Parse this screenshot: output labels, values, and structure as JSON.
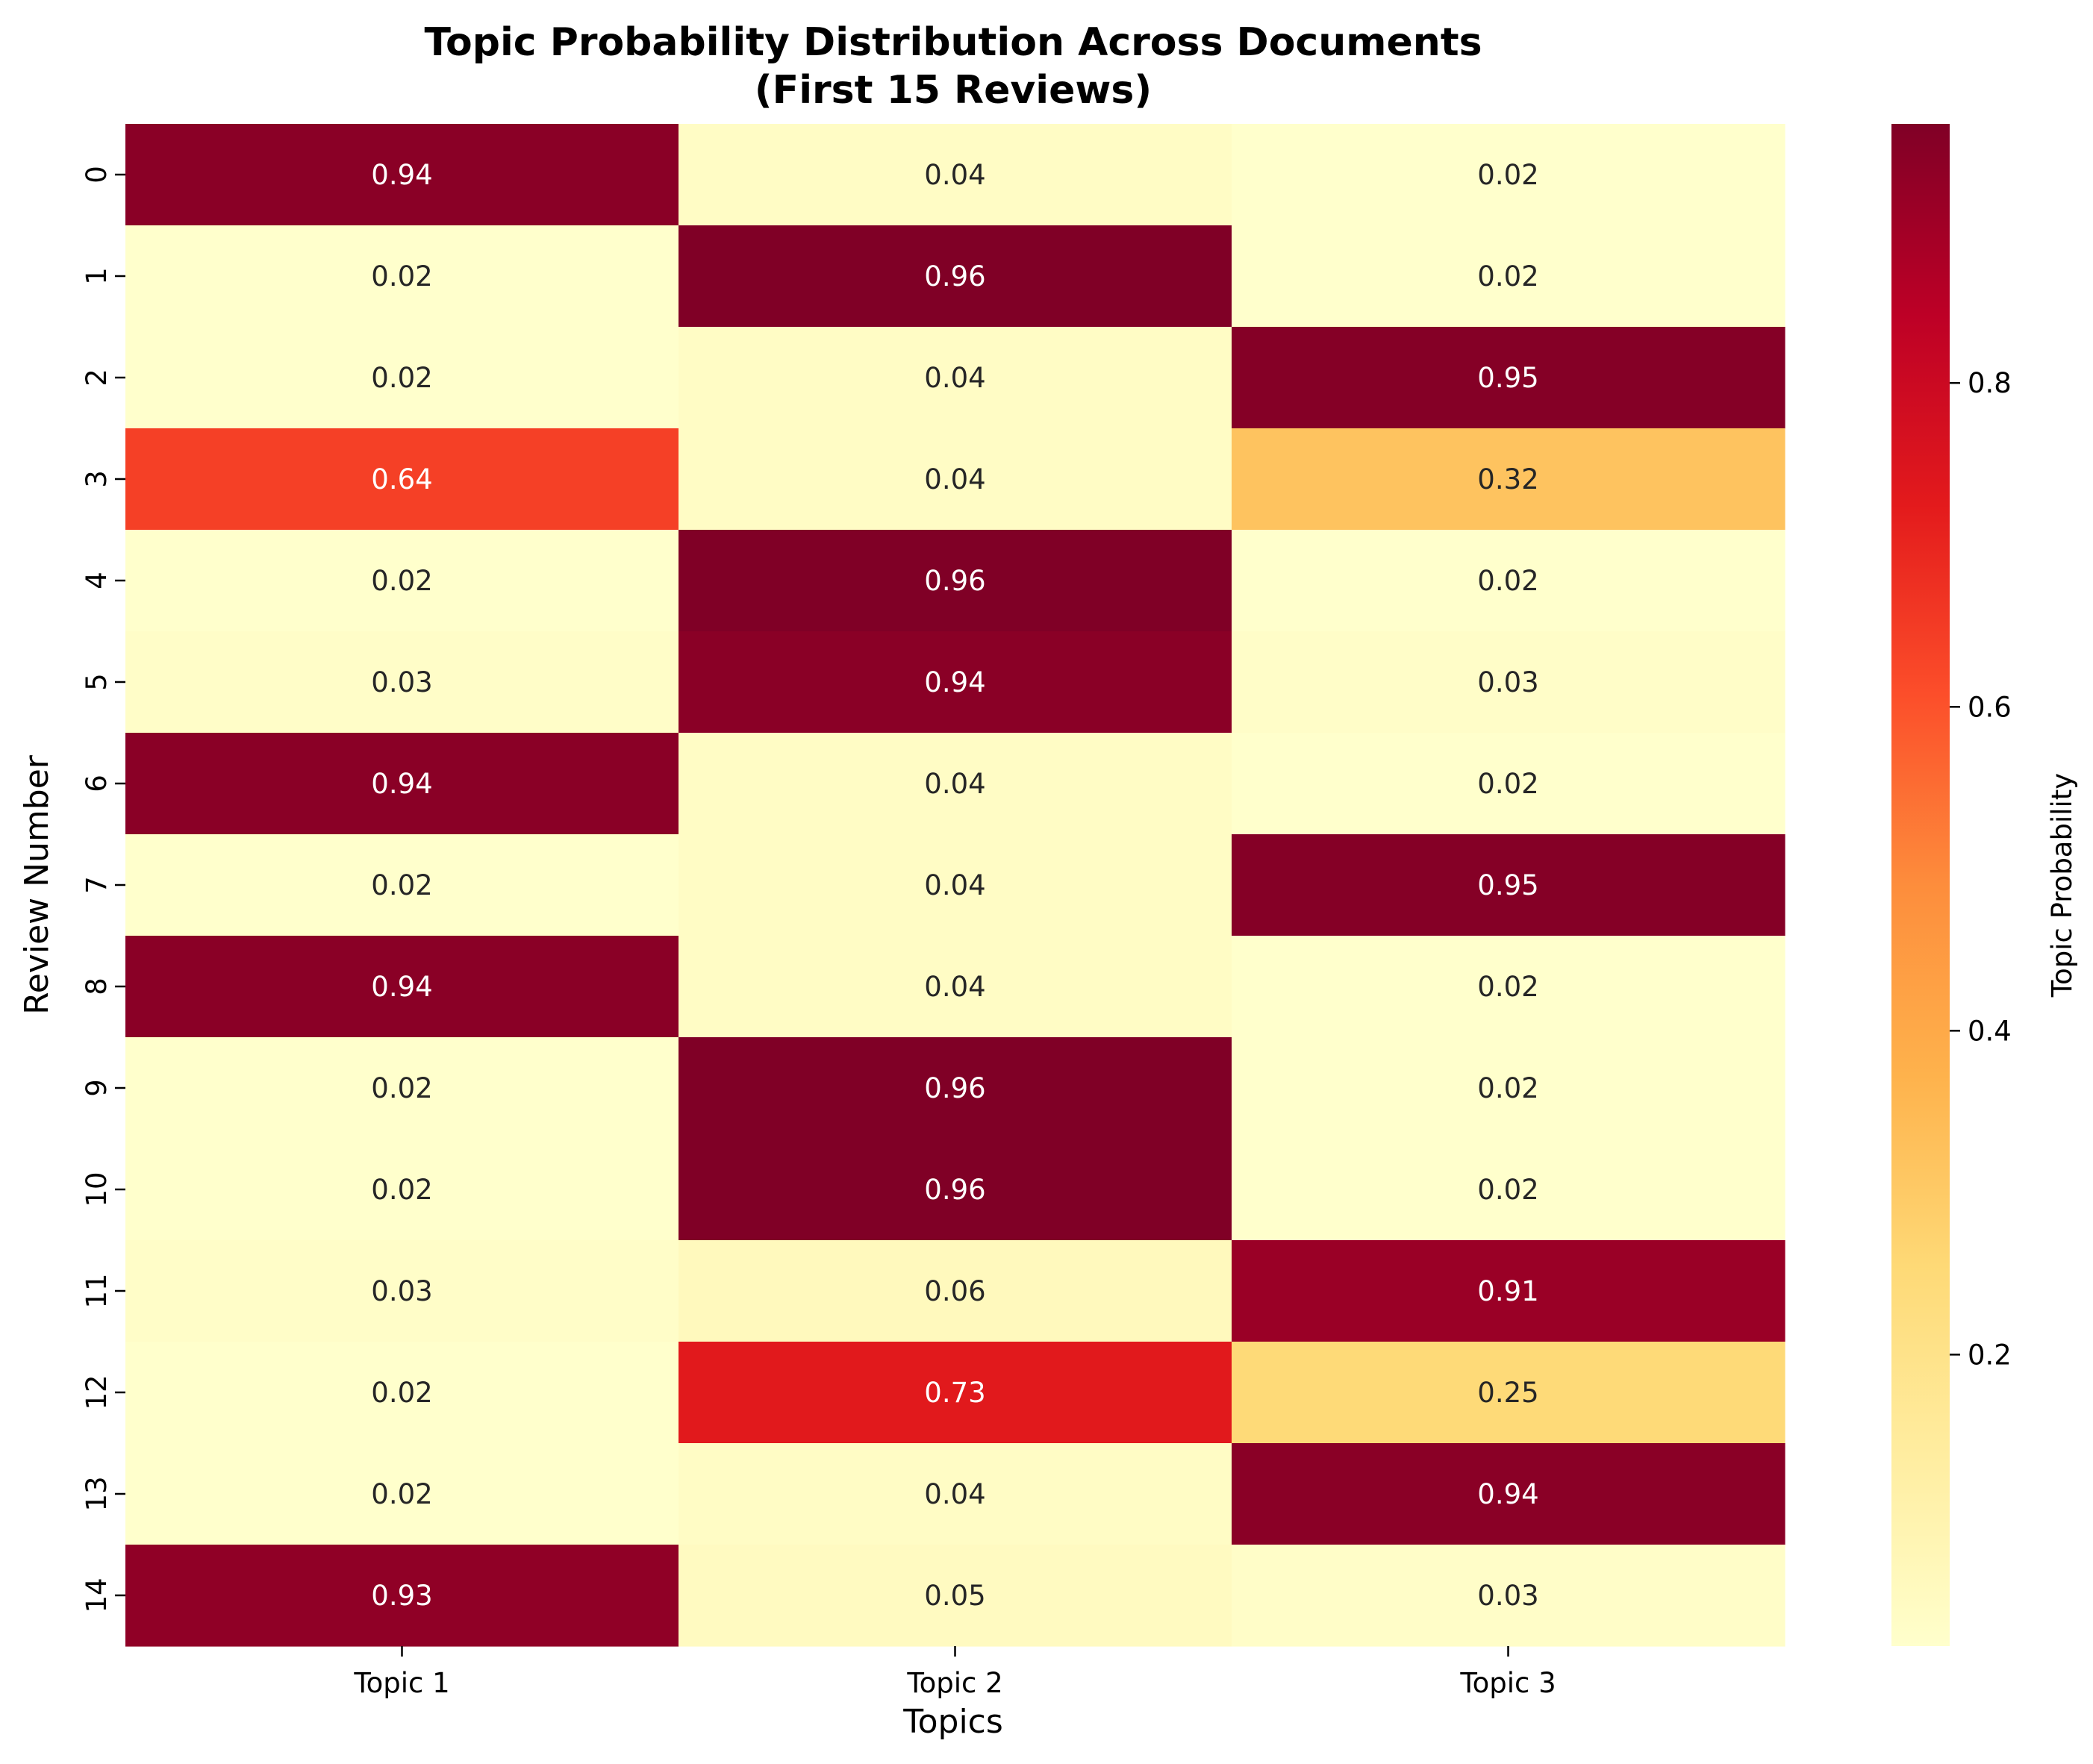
{
  "chart_data": {
    "type": "heatmap",
    "title": "Topic Probability Distribution Across Documents\n(First 15 Reviews)",
    "title_lines": [
      "Topic Probability Distribution Across Documents",
      "(First 15 Reviews)"
    ],
    "xlabel": "Topics",
    "ylabel": "Review Number",
    "x_categories": [
      "Topic 1",
      "Topic 2",
      "Topic 3"
    ],
    "y_categories": [
      "0",
      "1",
      "2",
      "3",
      "4",
      "5",
      "6",
      "7",
      "8",
      "9",
      "10",
      "11",
      "12",
      "13",
      "14"
    ],
    "values": [
      [
        0.94,
        0.04,
        0.02
      ],
      [
        0.02,
        0.96,
        0.02
      ],
      [
        0.02,
        0.04,
        0.95
      ],
      [
        0.64,
        0.04,
        0.32
      ],
      [
        0.02,
        0.96,
        0.02
      ],
      [
        0.03,
        0.94,
        0.03
      ],
      [
        0.94,
        0.04,
        0.02
      ],
      [
        0.02,
        0.04,
        0.95
      ],
      [
        0.94,
        0.04,
        0.02
      ],
      [
        0.02,
        0.96,
        0.02
      ],
      [
        0.02,
        0.96,
        0.02
      ],
      [
        0.03,
        0.06,
        0.91
      ],
      [
        0.02,
        0.73,
        0.25
      ],
      [
        0.02,
        0.04,
        0.94
      ],
      [
        0.93,
        0.05,
        0.03
      ]
    ],
    "value_labels": [
      [
        "0.94",
        "0.04",
        "0.02"
      ],
      [
        "0.02",
        "0.96",
        "0.02"
      ],
      [
        "0.02",
        "0.04",
        "0.95"
      ],
      [
        "0.64",
        "0.04",
        "0.32"
      ],
      [
        "0.02",
        "0.96",
        "0.02"
      ],
      [
        "0.03",
        "0.94",
        "0.03"
      ],
      [
        "0.94",
        "0.04",
        "0.02"
      ],
      [
        "0.02",
        "0.04",
        "0.95"
      ],
      [
        "0.94",
        "0.04",
        "0.02"
      ],
      [
        "0.02",
        "0.96",
        "0.02"
      ],
      [
        "0.02",
        "0.96",
        "0.02"
      ],
      [
        "0.03",
        "0.06",
        "0.91"
      ],
      [
        "0.02",
        "0.73",
        "0.25"
      ],
      [
        "0.02",
        "0.04",
        "0.94"
      ],
      [
        "0.93",
        "0.05",
        "0.03"
      ]
    ],
    "colormap": "YlOrRd",
    "colorbar": {
      "label": "Topic Probability",
      "ticks": [
        "0.2",
        "0.4",
        "0.6",
        "0.8"
      ],
      "range": [
        0.02,
        0.96
      ]
    },
    "grid": false,
    "legend": "colorbar-right"
  }
}
